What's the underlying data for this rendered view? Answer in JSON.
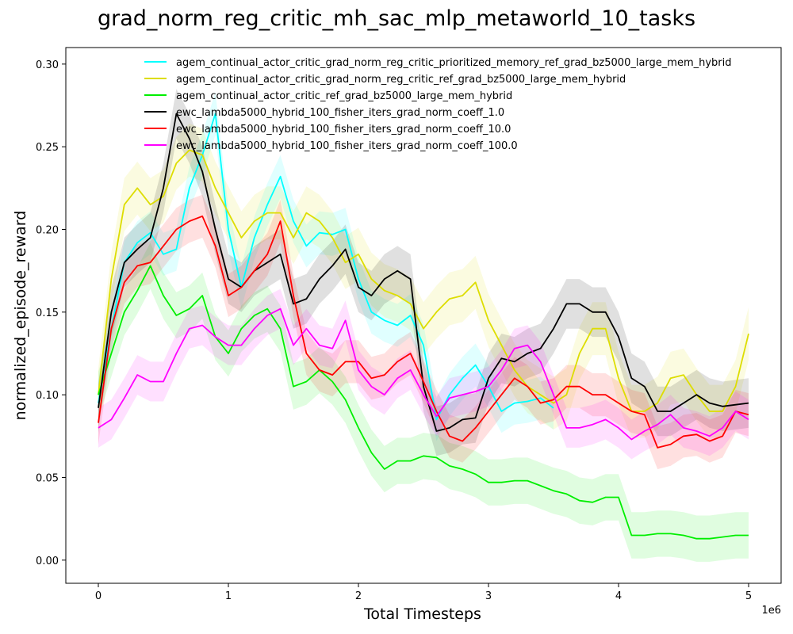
{
  "chart_data": {
    "type": "line",
    "title": "grad_norm_reg_critic_mh_sac_mlp_metaworld_10_tasks",
    "xlabel": "Total Timesteps",
    "ylabel": "normalized_episode_reward",
    "x_offset_text": "1e6",
    "xlim": [
      -0.25,
      5.25
    ],
    "ylim": [
      -0.014,
      0.31
    ],
    "x_ticks": [
      0,
      1,
      2,
      3,
      4,
      5
    ],
    "x_tick_labels": [
      "0",
      "1",
      "2",
      "3",
      "4",
      "5"
    ],
    "y_ticks": [
      0.0,
      0.05,
      0.1,
      0.15,
      0.2,
      0.25,
      0.3
    ],
    "y_tick_labels": [
      "0.00",
      "0.05",
      "0.10",
      "0.15",
      "0.20",
      "0.25",
      "0.30"
    ],
    "grid": false,
    "legend_position": "top-right",
    "x": [
      0,
      0.1,
      0.2,
      0.3,
      0.4,
      0.5,
      0.6,
      0.7,
      0.8,
      0.9,
      1.0,
      1.1,
      1.2,
      1.3,
      1.4,
      1.5,
      1.6,
      1.7,
      1.8,
      1.9,
      2.0,
      2.1,
      2.2,
      2.3,
      2.4,
      2.5,
      2.6,
      2.7,
      2.8,
      2.9,
      3.0,
      3.1,
      3.2,
      3.3,
      3.4,
      3.5,
      3.6,
      3.7,
      3.8,
      3.9,
      4.0,
      4.1,
      4.2,
      4.3,
      4.4,
      4.5,
      4.6,
      4.7,
      4.8,
      4.9,
      5.0
    ],
    "series": [
      {
        "name": "agem_continual_actor_critic_grad_norm_reg_critic_prioritized_memory_ref_grad_bz5000_large_mem_hybrid",
        "color": "#00ffff",
        "band": 0.013,
        "values": [
          0.095,
          0.14,
          0.18,
          0.192,
          0.198,
          0.185,
          0.188,
          0.225,
          0.245,
          0.27,
          0.2,
          0.165,
          0.195,
          0.215,
          0.232,
          0.205,
          0.19,
          0.198,
          0.197,
          0.2,
          0.17,
          0.15,
          0.145,
          0.142,
          0.148,
          0.13,
          0.085,
          0.1,
          0.11,
          0.118,
          0.105,
          0.09,
          0.095,
          0.096,
          0.098,
          0.092,
          null,
          null,
          null,
          null,
          null,
          null,
          null,
          null,
          null,
          null,
          null,
          null,
          null,
          null,
          null
        ]
      },
      {
        "name": "agem_continual_actor_critic_grad_norm_reg_critic_ref_grad_bz5000_large_mem_hybrid",
        "color": "#dddd00",
        "band": 0.016,
        "values": [
          0.1,
          0.17,
          0.215,
          0.225,
          0.215,
          0.22,
          0.24,
          0.248,
          0.245,
          0.225,
          0.21,
          0.195,
          0.205,
          0.21,
          0.21,
          0.195,
          0.21,
          0.205,
          0.195,
          0.18,
          0.185,
          0.17,
          0.163,
          0.16,
          0.155,
          0.14,
          0.15,
          0.158,
          0.16,
          0.168,
          0.145,
          0.13,
          0.115,
          0.105,
          0.1,
          0.095,
          0.1,
          0.125,
          0.14,
          0.14,
          0.11,
          0.09,
          0.09,
          0.095,
          0.11,
          0.112,
          0.1,
          0.09,
          0.09,
          0.105,
          0.137
        ]
      },
      {
        "name": "agem_continual_actor_critic_ref_grad_bz5000_large_mem_hybrid",
        "color": "#00ee00",
        "band": 0.014,
        "values": [
          0.1,
          0.125,
          0.15,
          0.163,
          0.178,
          0.16,
          0.148,
          0.152,
          0.16,
          0.135,
          0.125,
          0.14,
          0.148,
          0.152,
          0.14,
          0.105,
          0.108,
          0.115,
          0.108,
          0.097,
          0.08,
          0.065,
          0.055,
          0.06,
          0.06,
          0.063,
          0.062,
          0.057,
          0.055,
          0.052,
          0.047,
          0.047,
          0.048,
          0.048,
          0.045,
          0.042,
          0.04,
          0.036,
          0.035,
          0.038,
          0.038,
          0.015,
          0.015,
          0.016,
          0.016,
          0.015,
          0.013,
          0.013,
          0.014,
          0.015,
          0.015
        ]
      },
      {
        "name": "ewc_lambda5000_hybrid_100_fisher_iters_grad_norm_coeff_1.0",
        "color": "#000000",
        "band": 0.015,
        "values": [
          0.092,
          0.15,
          0.18,
          0.188,
          0.195,
          0.225,
          0.27,
          0.255,
          0.235,
          0.2,
          0.17,
          0.165,
          0.175,
          0.18,
          0.185,
          0.155,
          0.158,
          0.17,
          0.178,
          0.188,
          0.165,
          0.16,
          0.17,
          0.175,
          0.17,
          0.105,
          0.078,
          0.08,
          0.085,
          0.086,
          0.11,
          0.122,
          0.12,
          0.125,
          0.128,
          0.14,
          0.155,
          0.155,
          0.15,
          0.15,
          0.135,
          0.11,
          0.105,
          0.09,
          0.09,
          0.095,
          0.1,
          0.095,
          0.093,
          0.094,
          0.095
        ]
      },
      {
        "name": "ewc_lambda5000_hybrid_100_fisher_iters_grad_norm_coeff_10.0",
        "color": "#ff0000",
        "band": 0.013,
        "values": [
          0.083,
          0.14,
          0.168,
          0.178,
          0.18,
          0.19,
          0.2,
          0.205,
          0.208,
          0.19,
          0.16,
          0.165,
          0.175,
          0.185,
          0.205,
          0.16,
          0.125,
          0.115,
          0.112,
          0.12,
          0.12,
          0.11,
          0.112,
          0.12,
          0.125,
          0.108,
          0.09,
          0.075,
          0.072,
          0.08,
          0.09,
          0.1,
          0.11,
          0.105,
          0.095,
          0.097,
          0.105,
          0.105,
          0.1,
          0.1,
          0.095,
          0.09,
          0.088,
          0.068,
          0.07,
          0.075,
          0.076,
          0.072,
          0.075,
          0.09,
          0.088
        ]
      },
      {
        "name": "ewc_lambda5000_hybrid_100_fisher_iters_grad_norm_coeff_100.0",
        "color": "#ff00ff",
        "band": 0.012,
        "values": [
          0.08,
          0.085,
          0.098,
          0.112,
          0.108,
          0.108,
          0.125,
          0.14,
          0.142,
          0.135,
          0.13,
          0.13,
          0.14,
          0.148,
          0.152,
          0.13,
          0.14,
          0.13,
          0.128,
          0.145,
          0.115,
          0.105,
          0.1,
          0.11,
          0.115,
          0.1,
          0.087,
          0.098,
          0.1,
          0.102,
          0.105,
          0.115,
          0.128,
          0.13,
          0.12,
          0.1,
          0.08,
          0.08,
          0.082,
          0.085,
          0.08,
          0.073,
          0.078,
          0.082,
          0.088,
          0.08,
          0.078,
          0.075,
          0.08,
          0.09,
          0.085
        ]
      }
    ]
  }
}
